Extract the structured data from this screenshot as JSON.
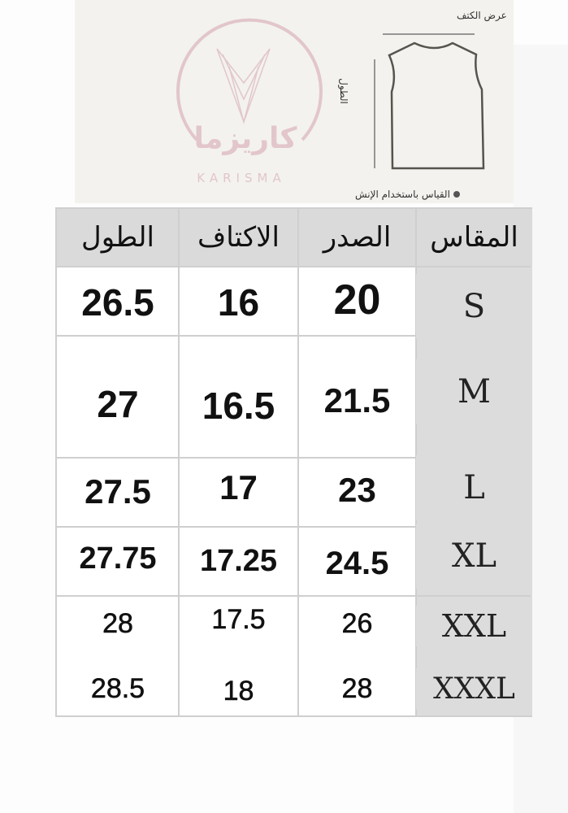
{
  "diagram": {
    "shoulder_label": "عرض الكتف",
    "length_label": "الطول",
    "note": "القياس باستخدام الإنش"
  },
  "logo": {
    "arabic": "كاريزما",
    "latin": "KARISMA",
    "color": "#e2c6cb"
  },
  "table": {
    "headers": [
      "الطول",
      "الاكتاف",
      "الصدر",
      "المقاس"
    ],
    "rows": [
      {
        "length": "26.5",
        "shoulders": "16",
        "chest": "20",
        "size": "S"
      },
      {
        "length": "27",
        "shoulders": "16.5",
        "chest": "21.5",
        "size": "M"
      },
      {
        "length": "27.5",
        "shoulders": "17",
        "chest": "23",
        "size": "L"
      },
      {
        "length": "27.75",
        "shoulders": "17.25",
        "chest": "24.5",
        "size": "XL"
      },
      {
        "length": "28",
        "shoulders": "17.5",
        "chest": "26",
        "size": "XXL"
      },
      {
        "length": "28.5",
        "shoulders": "18",
        "chest": "28",
        "size": "XXXL"
      }
    ]
  }
}
